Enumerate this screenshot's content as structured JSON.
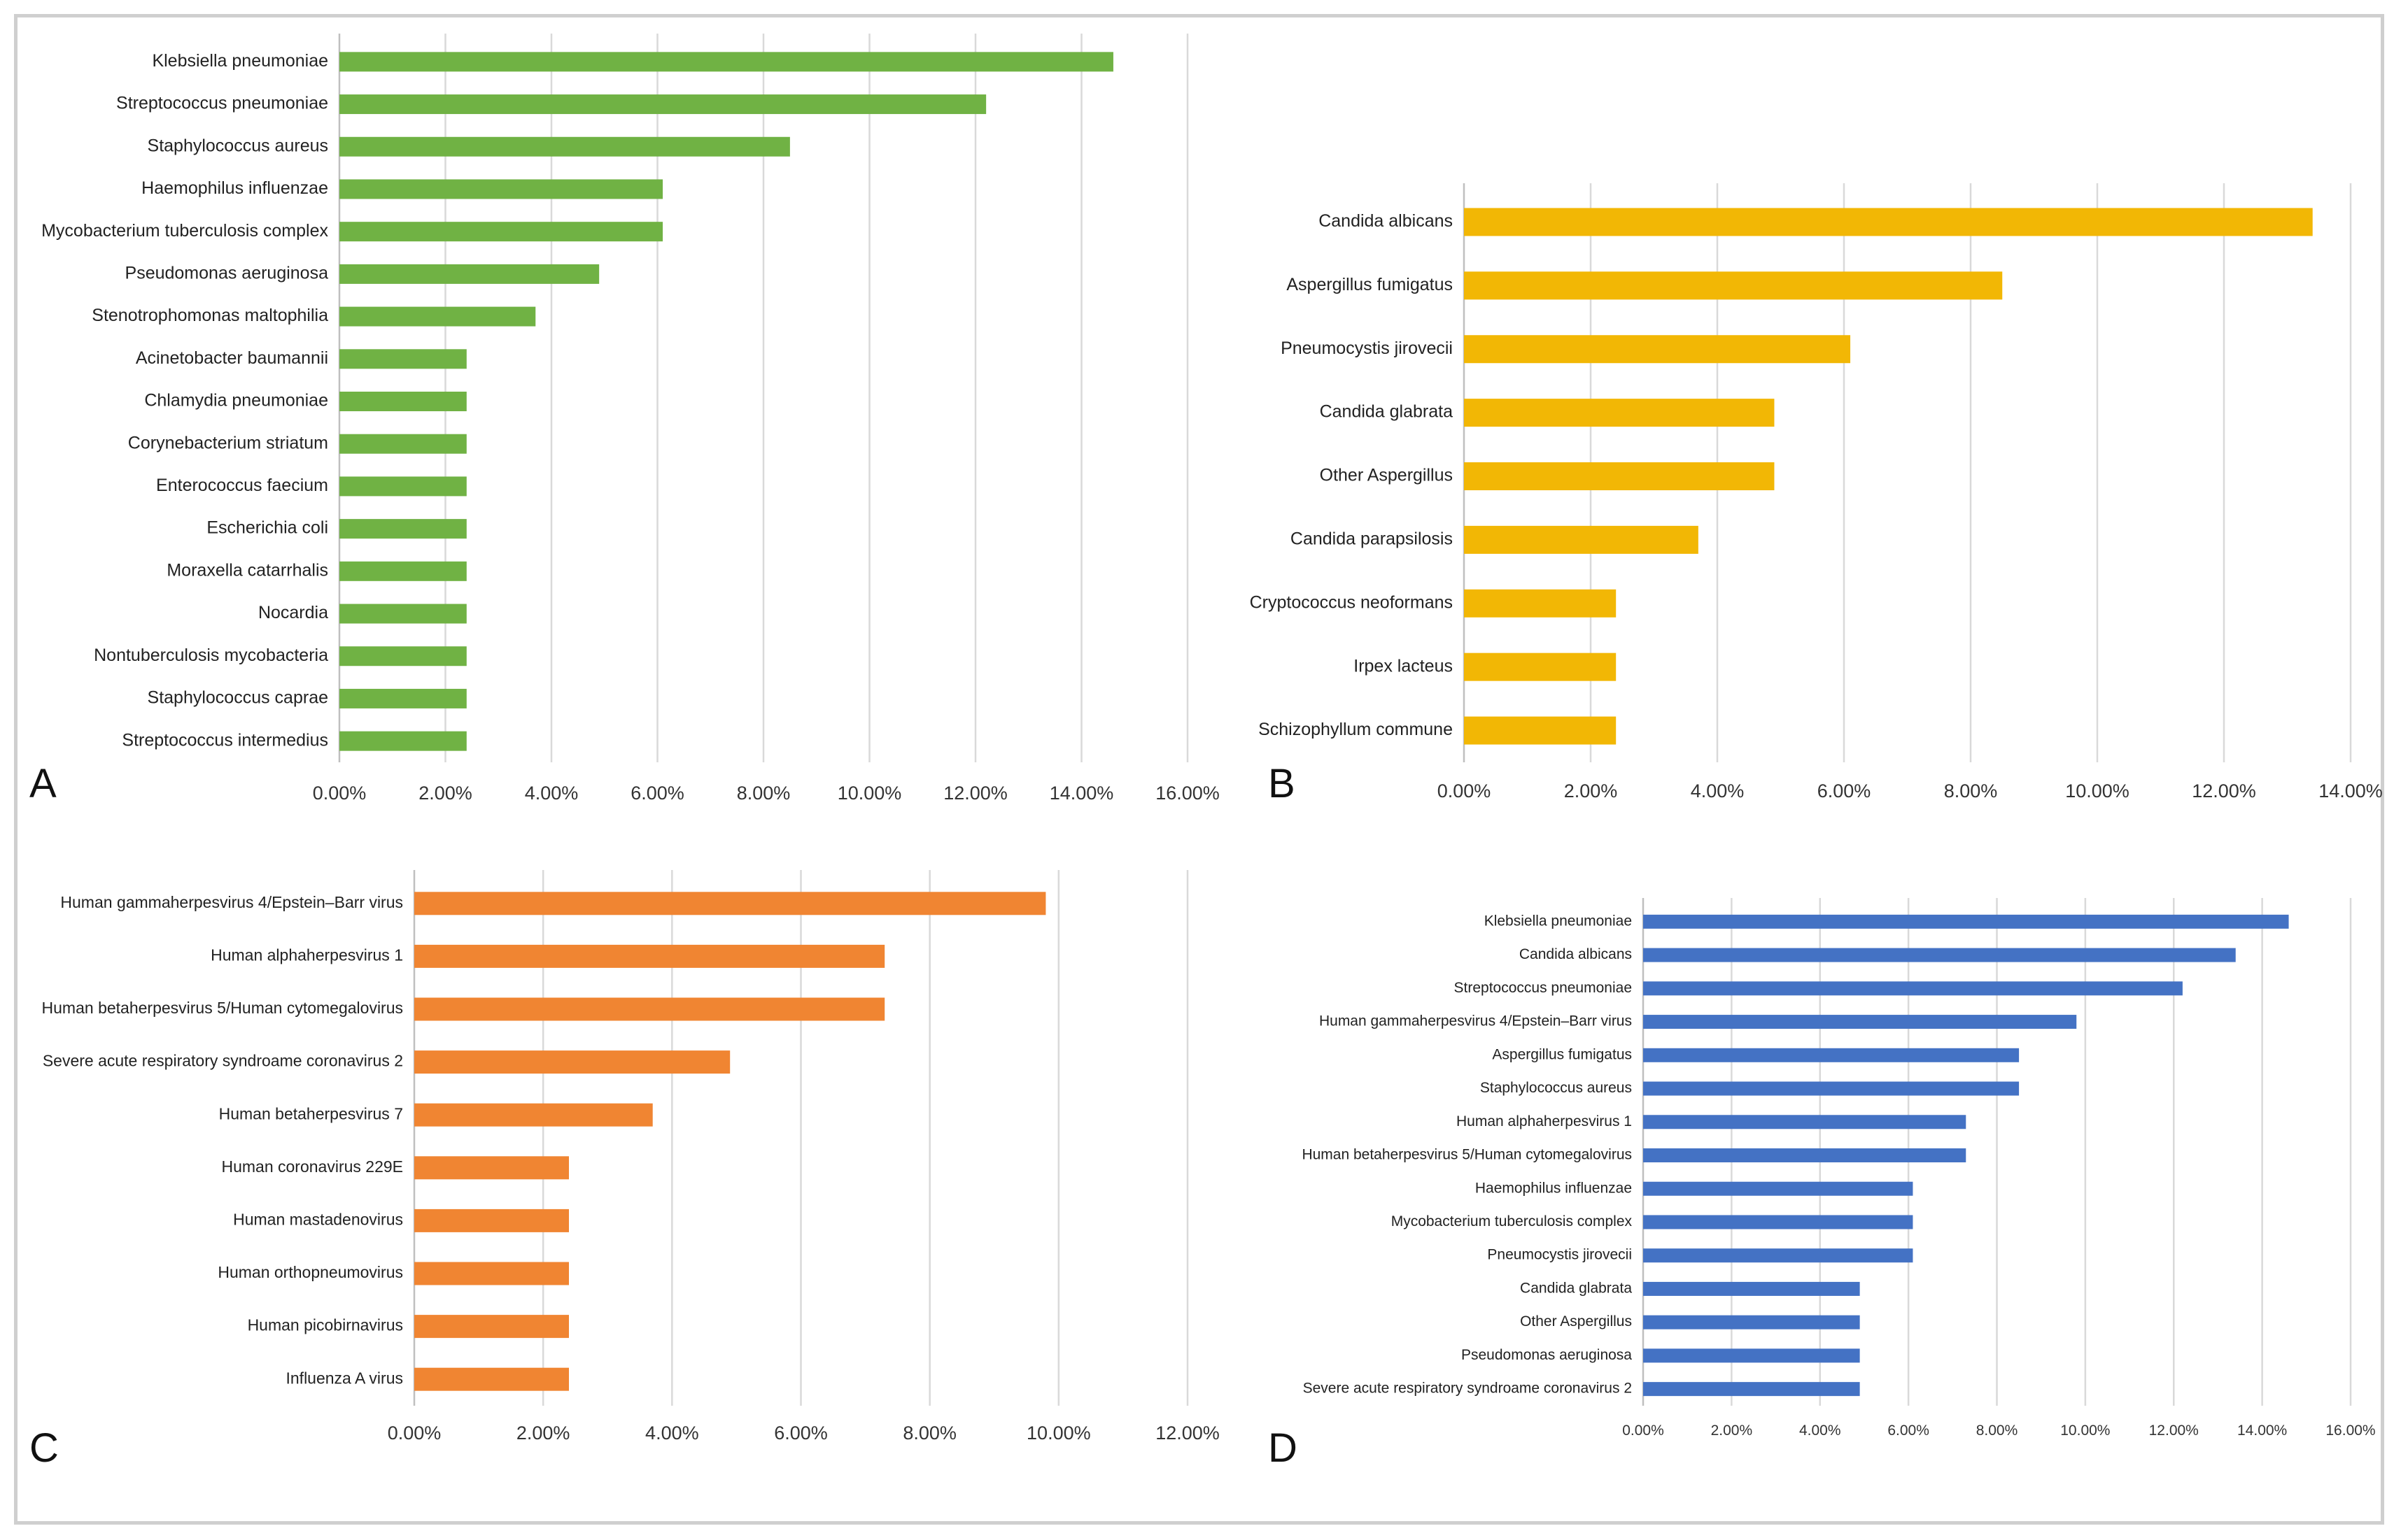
{
  "chart_data": [
    {
      "type": "bar",
      "panel_letter": "A",
      "orientation": "horizontal",
      "color": "#70b244",
      "categories": [
        "Klebsiella pneumoniae",
        "Streptococcus pneumoniae",
        "Staphylococcus aureus",
        "Haemophilus influenzae",
        "Mycobacterium tuberculosis complex",
        "Pseudomonas aeruginosa",
        "Stenotrophomonas maltophilia",
        "Acinetobacter baumannii",
        "Chlamydia pneumoniae",
        "Corynebacterium striatum",
        "Enterococcus faecium",
        "Escherichia coli",
        "Moraxella catarrhalis",
        "Nocardia",
        "Nontuberculosis mycobacteria",
        "Staphylococcus caprae",
        "Streptococcus intermedius"
      ],
      "values": [
        14.6,
        12.2,
        8.5,
        6.1,
        6.1,
        4.9,
        3.7,
        2.4,
        2.4,
        2.4,
        2.4,
        2.4,
        2.4,
        2.4,
        2.4,
        2.4,
        2.4
      ],
      "xlim": [
        0,
        16
      ],
      "xticks": [
        "0.00%",
        "2.00%",
        "4.00%",
        "6.00%",
        "8.00%",
        "10.00%",
        "12.00%",
        "14.00%",
        "16.00%"
      ],
      "grid": true
    },
    {
      "type": "bar",
      "panel_letter": "B",
      "orientation": "horizontal",
      "color": "#f2b705",
      "categories": [
        "Candida albicans",
        "Aspergillus fumigatus",
        "Pneumocystis jirovecii",
        "Candida glabrata",
        "Other Aspergillus",
        "Candida parapsilosis",
        "Cryptococcus neoformans",
        "Irpex lacteus",
        "Schizophyllum commune"
      ],
      "values": [
        13.4,
        8.5,
        6.1,
        4.9,
        4.9,
        3.7,
        2.4,
        2.4,
        2.4
      ],
      "xlim": [
        0,
        14
      ],
      "xticks": [
        "0.00%",
        "2.00%",
        "4.00%",
        "6.00%",
        "8.00%",
        "10.00%",
        "12.00%",
        "14.00%"
      ],
      "grid": true
    },
    {
      "type": "bar",
      "panel_letter": "C",
      "orientation": "horizontal",
      "color": "#f08532",
      "categories": [
        "Human gammaherpesvirus 4/Epstein–Barr virus",
        "Human alphaherpesvirus 1",
        "Human betaherpesvirus 5/Human cytomegalovirus",
        "Severe acute respiratory syndroame coronavirus 2",
        "Human betaherpesvirus 7",
        "Human coronavirus 229E",
        "Human mastadenovirus",
        "Human orthopneumovirus",
        "Human picobirnavirus",
        "Influenza A virus"
      ],
      "values": [
        9.8,
        7.3,
        7.3,
        4.9,
        3.7,
        2.4,
        2.4,
        2.4,
        2.4,
        2.4
      ],
      "xlim": [
        0,
        12
      ],
      "xticks": [
        "0.00%",
        "2.00%",
        "4.00%",
        "6.00%",
        "8.00%",
        "10.00%",
        "12.00%"
      ],
      "grid": true
    },
    {
      "type": "bar",
      "panel_letter": "D",
      "orientation": "horizontal",
      "color": "#4472c4",
      "categories": [
        "Klebsiella pneumoniae",
        "Candida albicans",
        "Streptococcus pneumoniae",
        "Human gammaherpesvirus 4/Epstein–Barr virus",
        "Aspergillus fumigatus",
        "Staphylococcus aureus",
        "Human alphaherpesvirus 1",
        "Human betaherpesvirus 5/Human cytomegalovirus",
        "Haemophilus influenzae",
        "Mycobacterium tuberculosis complex",
        "Pneumocystis jirovecii",
        "Candida glabrata",
        "Other Aspergillus",
        "Pseudomonas aeruginosa",
        "Severe acute respiratory syndroame coronavirus 2"
      ],
      "values": [
        14.6,
        13.4,
        12.2,
        9.8,
        8.5,
        8.5,
        7.3,
        7.3,
        6.1,
        6.1,
        6.1,
        4.9,
        4.9,
        4.9,
        4.9
      ],
      "xlim": [
        0,
        16
      ],
      "xticks": [
        "0.00%",
        "2.00%",
        "4.00%",
        "6.00%",
        "8.00%",
        "10.00%",
        "12.00%",
        "14.00%",
        "16.00%"
      ],
      "grid": true
    }
  ]
}
